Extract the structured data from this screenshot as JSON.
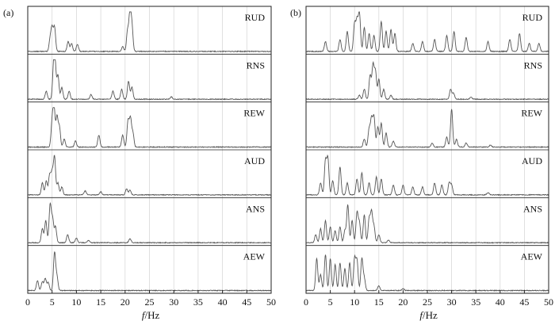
{
  "chart_data": [
    {
      "type": "line",
      "panel_label": "(a)",
      "xlabel_italic": "f",
      "xlabel_unit": "/Hz",
      "xlim": [
        0,
        50
      ],
      "x_ticks": [
        "0",
        "5",
        "10",
        "15",
        "20",
        "25",
        "30",
        "35",
        "40",
        "45",
        "50"
      ],
      "grid": true,
      "series": [
        {
          "name": "RUD",
          "peaks": [
            [
              4.6,
              0.3
            ],
            [
              5.0,
              0.55
            ],
            [
              5.5,
              0.6
            ],
            [
              8.3,
              0.25
            ],
            [
              9.0,
              0.2
            ],
            [
              10.2,
              0.18
            ],
            [
              19.5,
              0.12
            ],
            [
              20.5,
              0.5
            ],
            [
              21.0,
              0.95
            ],
            [
              21.4,
              0.6
            ]
          ]
        },
        {
          "name": "RNS",
          "peaks": [
            [
              3.8,
              0.2
            ],
            [
              5.3,
              0.7
            ],
            [
              5.6,
              0.85
            ],
            [
              6.2,
              0.6
            ],
            [
              7.0,
              0.3
            ],
            [
              8.5,
              0.2
            ],
            [
              13.0,
              0.12
            ],
            [
              17.5,
              0.2
            ],
            [
              19.3,
              0.25
            ],
            [
              20.7,
              0.45
            ],
            [
              21.4,
              0.3
            ],
            [
              29.5,
              0.06
            ]
          ]
        },
        {
          "name": "REW",
          "peaks": [
            [
              5.0,
              0.6
            ],
            [
              5.4,
              0.95
            ],
            [
              6.0,
              0.75
            ],
            [
              6.5,
              0.5
            ],
            [
              7.5,
              0.2
            ],
            [
              9.8,
              0.15
            ],
            [
              14.6,
              0.3
            ],
            [
              19.5,
              0.3
            ],
            [
              20.6,
              0.65
            ],
            [
              21.1,
              0.7
            ],
            [
              21.6,
              0.35
            ]
          ]
        },
        {
          "name": "AUD",
          "peaks": [
            [
              3.0,
              0.3
            ],
            [
              3.8,
              0.35
            ],
            [
              4.5,
              0.5
            ],
            [
              5.0,
              0.55
            ],
            [
              5.5,
              0.95
            ],
            [
              6.2,
              0.3
            ],
            [
              7.0,
              0.2
            ],
            [
              11.8,
              0.1
            ],
            [
              15.0,
              0.08
            ],
            [
              20.3,
              0.15
            ],
            [
              21.0,
              0.12
            ]
          ]
        },
        {
          "name": "ANS",
          "peaks": [
            [
              3.0,
              0.35
            ],
            [
              3.7,
              0.55
            ],
            [
              4.6,
              0.95
            ],
            [
              5.1,
              0.6
            ],
            [
              5.7,
              0.4
            ],
            [
              8.2,
              0.2
            ],
            [
              10.0,
              0.12
            ],
            [
              12.5,
              0.06
            ],
            [
              21.0,
              0.1
            ]
          ]
        },
        {
          "name": "AEW",
          "peaks": [
            [
              2.0,
              0.25
            ],
            [
              3.0,
              0.22
            ],
            [
              3.6,
              0.3
            ],
            [
              4.2,
              0.2
            ],
            [
              5.5,
              0.95
            ],
            [
              6.0,
              0.35
            ]
          ]
        }
      ]
    },
    {
      "type": "line",
      "panel_label": "(b)",
      "xlabel_italic": "f",
      "xlabel_unit": "/Hz",
      "xlim": [
        0,
        50
      ],
      "x_ticks": [
        "0",
        "5",
        "10",
        "15",
        "20",
        "25",
        "30",
        "35",
        "40",
        "45",
        "50"
      ],
      "grid": true,
      "series": [
        {
          "name": "RUD",
          "peaks": [
            [
              4.0,
              0.25
            ],
            [
              7.0,
              0.3
            ],
            [
              8.5,
              0.5
            ],
            [
              10.0,
              0.7
            ],
            [
              10.5,
              0.75
            ],
            [
              11.0,
              0.95
            ],
            [
              12.0,
              0.6
            ],
            [
              13.0,
              0.45
            ],
            [
              14.0,
              0.4
            ],
            [
              15.5,
              0.75
            ],
            [
              16.5,
              0.5
            ],
            [
              17.5,
              0.55
            ],
            [
              18.3,
              0.45
            ],
            [
              22.0,
              0.2
            ],
            [
              24.0,
              0.25
            ],
            [
              26.5,
              0.3
            ],
            [
              29.0,
              0.4
            ],
            [
              30.5,
              0.5
            ],
            [
              33.0,
              0.35
            ],
            [
              37.5,
              0.25
            ],
            [
              42.0,
              0.3
            ],
            [
              44.0,
              0.45
            ],
            [
              46.0,
              0.2
            ],
            [
              48.0,
              0.2
            ]
          ]
        },
        {
          "name": "RNS",
          "peaks": [
            [
              11.0,
              0.1
            ],
            [
              12.0,
              0.25
            ],
            [
              13.2,
              0.6
            ],
            [
              13.8,
              0.85
            ],
            [
              14.3,
              0.7
            ],
            [
              15.0,
              0.5
            ],
            [
              16.0,
              0.25
            ],
            [
              17.5,
              0.1
            ],
            [
              29.8,
              0.25
            ],
            [
              30.4,
              0.15
            ],
            [
              34.0,
              0.05
            ]
          ]
        },
        {
          "name": "REW",
          "peaks": [
            [
              12.0,
              0.2
            ],
            [
              13.0,
              0.45
            ],
            [
              13.5,
              0.7
            ],
            [
              14.0,
              0.75
            ],
            [
              14.8,
              0.5
            ],
            [
              15.5,
              0.6
            ],
            [
              16.5,
              0.35
            ],
            [
              18.0,
              0.15
            ],
            [
              26.0,
              0.1
            ],
            [
              29.0,
              0.25
            ],
            [
              30.0,
              0.95
            ],
            [
              31.0,
              0.2
            ],
            [
              33.0,
              0.1
            ],
            [
              38.0,
              0.05
            ]
          ]
        },
        {
          "name": "AUD",
          "peaks": [
            [
              3.0,
              0.3
            ],
            [
              4.0,
              0.85
            ],
            [
              4.5,
              0.9
            ],
            [
              5.5,
              0.35
            ],
            [
              7.0,
              0.7
            ],
            [
              8.5,
              0.3
            ],
            [
              10.5,
              0.4
            ],
            [
              11.5,
              0.55
            ],
            [
              13.0,
              0.3
            ],
            [
              14.5,
              0.45
            ],
            [
              15.5,
              0.4
            ],
            [
              18.0,
              0.25
            ],
            [
              20.0,
              0.25
            ],
            [
              22.0,
              0.2
            ],
            [
              24.0,
              0.2
            ],
            [
              26.5,
              0.3
            ],
            [
              28.0,
              0.25
            ],
            [
              29.5,
              0.3
            ],
            [
              30.0,
              0.25
            ],
            [
              37.5,
              0.06
            ]
          ]
        },
        {
          "name": "ANS",
          "peaks": [
            [
              2.0,
              0.2
            ],
            [
              3.0,
              0.35
            ],
            [
              4.0,
              0.55
            ],
            [
              5.0,
              0.4
            ],
            [
              6.0,
              0.3
            ],
            [
              7.0,
              0.4
            ],
            [
              8.0,
              0.3
            ],
            [
              8.6,
              0.95
            ],
            [
              9.5,
              0.55
            ],
            [
              10.5,
              0.75
            ],
            [
              11.0,
              0.5
            ],
            [
              12.0,
              0.7
            ],
            [
              13.0,
              0.6
            ],
            [
              13.5,
              0.75
            ],
            [
              14.0,
              0.4
            ],
            [
              15.0,
              0.2
            ],
            [
              17.0,
              0.06
            ]
          ]
        },
        {
          "name": "AEW",
          "peaks": [
            [
              2.2,
              0.8
            ],
            [
              3.0,
              0.4
            ],
            [
              4.0,
              0.9
            ],
            [
              5.0,
              0.8
            ],
            [
              6.0,
              0.65
            ],
            [
              7.0,
              0.7
            ],
            [
              8.0,
              0.55
            ],
            [
              9.0,
              0.7
            ],
            [
              10.0,
              0.8
            ],
            [
              10.5,
              0.75
            ],
            [
              11.5,
              0.8
            ],
            [
              12.0,
              0.3
            ],
            [
              15.0,
              0.12
            ],
            [
              20.0,
              0.05
            ]
          ]
        }
      ]
    }
  ]
}
